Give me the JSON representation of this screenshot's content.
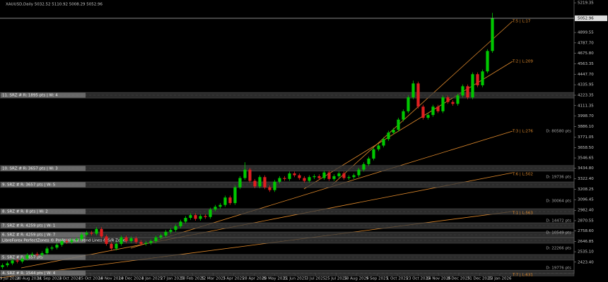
{
  "chart_data": {
    "type": "candlestick",
    "title": "XAUUSD,Daily  5032.52 5110.92 5008.29 5052.96",
    "open": [
      2370,
      2390,
      2410,
      2440,
      2430,
      2460,
      2500,
      2510,
      2500,
      2520,
      2570,
      2580,
      2610,
      2650,
      2640,
      2660,
      2670,
      2720,
      2740,
      2730,
      2780,
      2700,
      2620,
      2570,
      2620,
      2690,
      2650,
      2680,
      2640,
      2620,
      2630,
      2650,
      2690,
      2710,
      2750,
      2770,
      2810,
      2860,
      2900,
      2930,
      2890,
      2920,
      2910,
      2990,
      3020,
      3040,
      3120,
      3060,
      3230,
      3330,
      3420,
      3300,
      3240,
      3340,
      3230,
      3200,
      3290,
      3330,
      3320,
      3380,
      3360,
      3330,
      3300,
      3340,
      3350,
      3330,
      3390,
      3320,
      3350,
      3380,
      3330,
      3340,
      3360,
      3420,
      3480,
      3540,
      3640,
      3680,
      3750,
      3820,
      3850,
      3960,
      4050,
      4200,
      4350,
      4100,
      3980,
      4010,
      4100,
      4050,
      4200,
      4150,
      4130,
      4220,
      4320,
      4200,
      4450,
      4330,
      4480,
      4700
    ],
    "high": [
      2410,
      2430,
      2460,
      2460,
      2480,
      2520,
      2530,
      2530,
      2540,
      2590,
      2600,
      2630,
      2670,
      2670,
      2680,
      2690,
      2740,
      2760,
      2760,
      2800,
      2800,
      2720,
      2640,
      2640,
      2710,
      2710,
      2700,
      2700,
      2660,
      2650,
      2670,
      2710,
      2730,
      2770,
      2790,
      2830,
      2880,
      2920,
      2950,
      2950,
      2940,
      2940,
      3010,
      3040,
      3060,
      3140,
      3140,
      3250,
      3350,
      3500,
      3440,
      3320,
      3360,
      3360,
      3250,
      3310,
      3350,
      3350,
      3400,
      3400,
      3380,
      3350,
      3360,
      3370,
      3370,
      3410,
      3410,
      3370,
      3400,
      3400,
      3360,
      3380,
      3440,
      3500,
      3560,
      3660,
      3700,
      3770,
      3840,
      3870,
      3980,
      4070,
      4220,
      4380,
      4370,
      4120,
      4030,
      4120,
      4120,
      4220,
      4220,
      4170,
      4240,
      4340,
      4340,
      4470,
      4470,
      4500,
      4720,
      5110.92
    ],
    "low": [
      2350,
      2370,
      2390,
      2410,
      2410,
      2440,
      2480,
      2480,
      2480,
      2500,
      2550,
      2560,
      2590,
      2620,
      2620,
      2640,
      2650,
      2700,
      2710,
      2710,
      2680,
      2600,
      2550,
      2550,
      2600,
      2630,
      2630,
      2620,
      2600,
      2600,
      2610,
      2630,
      2670,
      2690,
      2730,
      2750,
      2790,
      2840,
      2880,
      2870,
      2870,
      2890,
      2890,
      2970,
      3000,
      3020,
      3040,
      3040,
      3210,
      3310,
      3280,
      3220,
      3220,
      3210,
      3180,
      3180,
      3270,
      3300,
      3300,
      3340,
      3310,
      3280,
      3280,
      3320,
      3310,
      3310,
      3300,
      3300,
      3330,
      3310,
      3310,
      3320,
      3340,
      3400,
      3460,
      3520,
      3620,
      3660,
      3730,
      3800,
      3830,
      3940,
      4030,
      4180,
      4080,
      3960,
      3960,
      3990,
      4030,
      4030,
      4130,
      4110,
      4110,
      4200,
      4180,
      4180,
      4310,
      4310,
      4460,
      4680
    ],
    "close": [
      2390,
      2410,
      2440,
      2430,
      2460,
      2500,
      2510,
      2500,
      2520,
      2570,
      2580,
      2610,
      2650,
      2640,
      2660,
      2670,
      2720,
      2740,
      2730,
      2780,
      2700,
      2620,
      2570,
      2620,
      2690,
      2650,
      2680,
      2640,
      2620,
      2630,
      2650,
      2690,
      2710,
      2750,
      2770,
      2810,
      2860,
      2900,
      2930,
      2890,
      2920,
      2910,
      2990,
      3020,
      3040,
      3120,
      3060,
      3230,
      3330,
      3420,
      3300,
      3240,
      3340,
      3230,
      3200,
      3290,
      3330,
      3320,
      3380,
      3360,
      3330,
      3300,
      3340,
      3350,
      3330,
      3390,
      3320,
      3350,
      3380,
      3330,
      3340,
      3360,
      3420,
      3480,
      3540,
      3640,
      3680,
      3750,
      3820,
      3850,
      3960,
      4050,
      4200,
      4350,
      4100,
      3980,
      4010,
      4100,
      4050,
      4200,
      4150,
      4130,
      4220,
      4320,
      4200,
      4450,
      4330,
      4480,
      4700,
      5052.96
    ],
    "up_color": "#00c800",
    "down_color": "#e02020",
    "ylim": [
      2300,
      5250
    ],
    "yticks": [
      5219.35,
      4899.55,
      {
        "value": 4787.7,
        "label": "4787.70"
      },
      {
        "value": 4675.8,
        "label": "4675.80"
      },
      4563.35,
      {
        "value": 4447.7,
        "label": "4447.70"
      },
      4335.95,
      4223.35,
      4111.35,
      {
        "value": 3998.7,
        "label": "3998.70"
      },
      {
        "value": 3886.1,
        "label": "3886.10"
      },
      3771.05,
      {
        "value": 3658.5,
        "label": "3658.50"
      },
      3546.65,
      {
        "value": 3434.8,
        "label": "3434.80"
      },
      {
        "value": 3322.4,
        "label": "3322.40"
      },
      3208.25,
      3096.45,
      {
        "value": 2982.4,
        "label": "2982.40"
      },
      2870.55,
      {
        "value": 2758.6,
        "label": "2758.60"
      },
      2646.85,
      {
        "value": 2535.1,
        "label": "2535.10"
      },
      {
        "value": 2423.4,
        "label": "2423.40"
      }
    ],
    "current_price": 5052.96,
    "xlim": [
      0,
      116
    ],
    "xticks": [
      {
        "value": 1.7,
        "label": "29 Jul 2024"
      },
      {
        "value": 5.8,
        "label": "20 Aug 2024"
      },
      {
        "value": 10,
        "label": "11 Sep 2024"
      },
      {
        "value": 14.1,
        "label": "3 Oct 2024"
      },
      {
        "value": 18.3,
        "label": "25 Oct 2024"
      },
      {
        "value": 22.4,
        "label": "18 Nov 2024"
      },
      {
        "value": 26.5,
        "label": "10 Dec 2024"
      },
      {
        "value": 30.7,
        "label": "3 Jan 2025"
      },
      {
        "value": 34.8,
        "label": "27 Jan 2025"
      },
      {
        "value": 38.9,
        "label": "18 Feb 2025"
      },
      {
        "value": 43.1,
        "label": "12 Mar 2025"
      },
      {
        "value": 47.2,
        "label": "3 Apr 2025"
      },
      {
        "value": 51.4,
        "label": "28 Apr 2025"
      },
      {
        "value": 55.5,
        "label": "20 May 2025"
      },
      {
        "value": 59.6,
        "label": "11 Jun 2025"
      },
      {
        "value": 63.8,
        "label": "3 Jul 2025"
      },
      {
        "value": 67.9,
        "label": "25 Jul 2025"
      },
      {
        "value": 72,
        "label": "18 Aug 2025"
      },
      {
        "value": 76.2,
        "label": "9 Sep 2025"
      },
      {
        "value": 80.3,
        "label": "1 Oct 2025"
      },
      {
        "value": 84.5,
        "label": "23 Oct 2025"
      },
      {
        "value": 88.6,
        "label": "14 Nov 2025"
      },
      {
        "value": 92.7,
        "label": "8 Dec 2025"
      },
      {
        "value": 96.9,
        "label": "31 Dec 2025"
      },
      {
        "value": 101,
        "label": "23 Jan 2026"
      }
    ],
    "zones": [
      {
        "label": "11. SRZ # R: 1895 pts | W: 4",
        "price": 4223
      },
      {
        "label": "10. SRZ # R: 3657 pts | W: 3",
        "price": 3434
      },
      {
        "label": "9. SRZ # R: 3657 pts | W: 5",
        "price": 3258
      },
      {
        "label": "8. SRZ # R: 8 pts | W: 2",
        "price": 2969
      },
      {
        "label": "7. SRZ # R: 4259 pts | W: 1",
        "price": 2817
      },
      {
        "label": "6. SRZ # R: 4259 pts | W: 7",
        "price": 2718
      },
      {
        "label": "LibreForex PerfectZones © Professional Trend Lines & S/R Zones",
        "price": 2657
      },
      {
        "label": "5. SRZ # R: 3657 pts",
        "price": 2475
      },
      {
        "label": "4. SRZ # R: 1544 pts | W: 4",
        "price": 2305
      }
    ],
    "trend_labels": [
      "T:5 | L:17",
      "T:2 | L:209",
      "T:3 | L:276",
      "T:6 | L:502",
      "T:1 | L:563",
      "T:7 | L:631"
    ],
    "distance_labels": [
      "D: 80580 pts",
      "D: 19736 pts",
      "D: 30064 pts",
      "D: 14472 pts",
      "D: 10549 pts",
      "D: 22266 pts",
      "D: 19776 pts"
    ]
  }
}
